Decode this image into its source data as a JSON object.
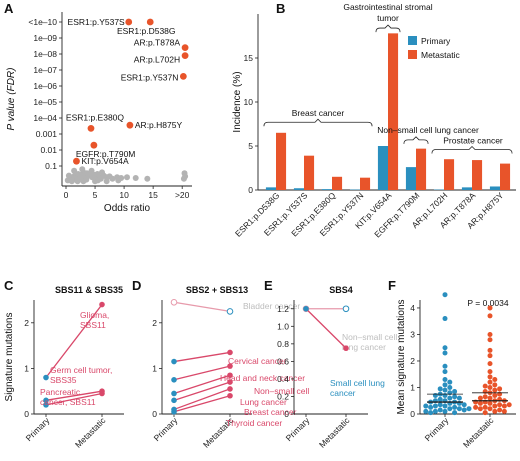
{
  "colors": {
    "primary": "#2a8fbf",
    "metastatic": "#e8542a",
    "pink": "#d9486a",
    "pinkLight": "#e79aab",
    "grey": "#b3b3b3",
    "greyLight": "#bdbdbd"
  },
  "chart_data": [
    {
      "panel": "A",
      "type": "scatter",
      "xlabel": "Odds ratio",
      "ylabel": "P value (FDR)",
      "xticks": [
        "0",
        "5",
        "10",
        "15",
        ">20"
      ],
      "yticks": [
        "<1e–10",
        "1e–09",
        "1e–08",
        "1e–07",
        "1e–06",
        "1e–05",
        "1e–04",
        "0.001",
        "0.01",
        "0.1"
      ],
      "highlighted": [
        {
          "label": "ESR1:p.Y537S",
          "x": 10.8,
          "y": 10
        },
        {
          "label": "ESR1:p.D538G",
          "x": 14.5,
          "y": 10
        },
        {
          "label": "AR:p.T878A",
          "x": 20.5,
          "y": 8.4
        },
        {
          "label": "AR:p.L702H",
          "x": 20.5,
          "y": 7.9
        },
        {
          "label": "ESR1:p.Y537N",
          "x": 20.2,
          "y": 6.6
        },
        {
          "label": "ESR1:p.E380Q",
          "x": 4.3,
          "y": 3.35
        },
        {
          "label": "AR:p.H875Y",
          "x": 11.0,
          "y": 3.55
        },
        {
          "label": "EGFR:p.T790M",
          "x": 4.8,
          "y": 2.3
        },
        {
          "label": "KIT:p.V654A",
          "x": 1.8,
          "y": 1.3
        }
      ],
      "background": [
        [
          0.3,
          0.1
        ],
        [
          0.6,
          0.2
        ],
        [
          0.9,
          0.3
        ],
        [
          1.2,
          0.15
        ],
        [
          1.5,
          0.4
        ],
        [
          1.8,
          0.35
        ],
        [
          2.1,
          0.5
        ],
        [
          2.4,
          0.25
        ],
        [
          2.7,
          0.45
        ],
        [
          3.0,
          0.6
        ],
        [
          3.3,
          0.3
        ],
        [
          3.6,
          0.55
        ],
        [
          3.9,
          0.4
        ],
        [
          4.2,
          0.5
        ],
        [
          4.5,
          0.3
        ],
        [
          4.8,
          0.45
        ],
        [
          5.1,
          0.35
        ],
        [
          5.4,
          0.5
        ],
        [
          5.7,
          0.3
        ],
        [
          6.0,
          0.2
        ],
        [
          6.5,
          0.4
        ],
        [
          7.0,
          0.3
        ],
        [
          7.5,
          0.35
        ],
        [
          8.0,
          0.2
        ],
        [
          8.8,
          0.3
        ],
        [
          9.5,
          0.25
        ],
        [
          10.5,
          0.3
        ],
        [
          12.0,
          0.25
        ],
        [
          14.0,
          0.2
        ],
        [
          20.3,
          0.2
        ],
        [
          20.5,
          0.35
        ],
        [
          20.4,
          0.55
        ],
        [
          1.0,
          0.05
        ],
        [
          2.0,
          0.05
        ],
        [
          3.0,
          0.05
        ],
        [
          5.0,
          0.05
        ],
        [
          7.0,
          0.05
        ],
        [
          1.4,
          0.7
        ],
        [
          2.8,
          0.8
        ],
        [
          4.4,
          0.7
        ],
        [
          6.2,
          0.6
        ],
        [
          0.5,
          0.4
        ],
        [
          3.5,
          0.15
        ],
        [
          5.5,
          0.1
        ],
        [
          9.0,
          0.1
        ]
      ]
    },
    {
      "panel": "B",
      "type": "bar",
      "ylabel": "Incidence (%)",
      "ylim": [
        0,
        20
      ],
      "yticks": [
        "0",
        "5",
        "10",
        "15"
      ],
      "legend": [
        "Primary",
        "Metastatic"
      ],
      "categories": [
        "ESR1:p.D538G",
        "ESR1:p.Y537S",
        "ESR1:p.E380Q",
        "ESR1:p.Y537N",
        "KIT:p.V654A",
        "EGFR:p.T790M",
        "AR:p.L702H",
        "AR:p.T878A",
        "AR:p.H875Y"
      ],
      "series": [
        {
          "name": "Primary",
          "values": [
            0.3,
            0.2,
            0.1,
            0.05,
            5.0,
            2.6,
            0.05,
            0.3,
            0.4
          ]
        },
        {
          "name": "Metastatic",
          "values": [
            6.5,
            3.9,
            1.5,
            1.4,
            17.8,
            4.7,
            3.5,
            3.4,
            3.0
          ]
        }
      ],
      "groups": [
        {
          "label": "Breast cancer",
          "from": 0,
          "to": 3
        },
        {
          "label": "Gastrointestinal stromal",
          "label2": "tumor",
          "from": 4,
          "to": 4
        },
        {
          "label": "Non–small cell lung cancer",
          "from": 5,
          "to": 5
        },
        {
          "label": "Prostate cancer",
          "from": 6,
          "to": 8
        }
      ]
    },
    {
      "panel": "C",
      "type": "line",
      "title": "SBS11 & SBS35",
      "ylabel": "Signature mutations",
      "xticks": [
        "Primary",
        "Metastatic"
      ],
      "ylim": [
        0,
        2.5
      ],
      "yticks": [
        "0",
        "1",
        "2"
      ],
      "lines": [
        {
          "label": "Glioma,",
          "label2": "SBS11",
          "primary": 0.8,
          "metastatic": 2.4,
          "fill": true
        },
        {
          "label": "Germ cell tumor,",
          "label2": "SBS35",
          "primary": 0.3,
          "metastatic": 0.5,
          "fill": true
        },
        {
          "label": "Pancreatic",
          "label2": "cancer, SBS11",
          "primary": 0.2,
          "metastatic": 0.45,
          "fill": true
        }
      ]
    },
    {
      "panel": "D",
      "type": "line",
      "title": "SBS2 + SBS13",
      "xticks": [
        "Primary",
        "Metastatic"
      ],
      "ylim": [
        0,
        2.5
      ],
      "yticks": [
        "0",
        "1",
        "2"
      ],
      "lines": [
        {
          "label": "Bladder cancer",
          "primary": 2.45,
          "metastatic": 2.25,
          "fill": false
        },
        {
          "label": "Cervical cancer",
          "primary": 1.15,
          "metastatic": 1.35,
          "fill": true
        },
        {
          "label": "Head and neck cancer",
          "primary": 0.75,
          "metastatic": 1.05,
          "fill": true
        },
        {
          "label": "Non–small cell",
          "primary": 0.45,
          "metastatic": 0.85,
          "fill": true
        },
        {
          "label": "Lung cancer",
          "primary": 0.3,
          "metastatic": 0.7,
          "fill": true
        },
        {
          "label": "Breast cancer",
          "primary": 0.1,
          "metastatic": 0.55,
          "fill": true
        },
        {
          "label": "Thyroid cancer",
          "primary": 0.05,
          "metastatic": 0.4,
          "fill": true
        }
      ]
    },
    {
      "panel": "E",
      "type": "line",
      "title": "SBS4",
      "xticks": [
        "Primary",
        "Metastatic"
      ],
      "ylim": [
        0,
        1.3
      ],
      "yticks": [
        "0",
        "0.2",
        "0.4",
        "0.6",
        "0.8",
        "1.0",
        "1.2"
      ],
      "lines": [
        {
          "label": "Non–small cell",
          "label2": "lung cancer",
          "primary": 1.2,
          "metastatic": 1.2,
          "fill": false
        },
        {
          "label": "Small cell lung",
          "label2": "cancer",
          "primary": 1.2,
          "metastatic": 0.75,
          "fill": true
        }
      ]
    },
    {
      "panel": "F",
      "type": "scatter",
      "ylabel": "Mean signature mutations",
      "annotation": "P = 0.0034",
      "xticks": [
        "Primary",
        "Metastatic"
      ],
      "ylim": [
        0,
        4.3
      ],
      "yticks": [
        "0",
        "1",
        "2",
        "3",
        "4"
      ],
      "primary_mean": 0.75,
      "metastatic_mean": 0.8,
      "primary_median": 0.45,
      "metastatic_median": 0.5,
      "primary_points": [
        4.5,
        3.6,
        2.5,
        2.3,
        1.8,
        1.6,
        1.3,
        1.2,
        1.1,
        1.0,
        0.95,
        0.9,
        0.85,
        0.8,
        0.75,
        0.7,
        0.7,
        0.65,
        0.6,
        0.6,
        0.55,
        0.5,
        0.5,
        0.45,
        0.45,
        0.4,
        0.4,
        0.35,
        0.35,
        0.3,
        0.3,
        0.3,
        0.25,
        0.25,
        0.2,
        0.2,
        0.2,
        0.15,
        0.15,
        0.1,
        0.1,
        0.1,
        0.05,
        0.05
      ],
      "metastatic_points": [
        4.0,
        3.7,
        3.0,
        2.8,
        2.4,
        2.2,
        1.9,
        1.6,
        1.4,
        1.3,
        1.2,
        1.1,
        1.05,
        1.0,
        0.95,
        0.9,
        0.85,
        0.8,
        0.75,
        0.7,
        0.65,
        0.6,
        0.6,
        0.55,
        0.5,
        0.5,
        0.45,
        0.45,
        0.4,
        0.4,
        0.35,
        0.35,
        0.3,
        0.3,
        0.25,
        0.25,
        0.2,
        0.2,
        0.15,
        0.1,
        0.1,
        0.05
      ]
    }
  ]
}
